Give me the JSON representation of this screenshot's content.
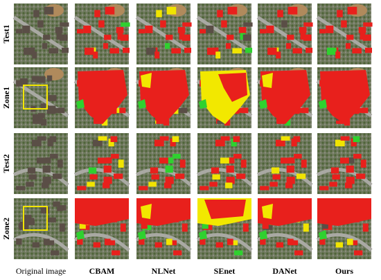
{
  "row_labels": [
    "Test1",
    "Zone1",
    "Test2",
    "Zone2"
  ],
  "column_labels": [
    "Original image",
    "CBAM",
    "NLNet",
    "SEnet",
    "DANet",
    "Ours"
  ]
}
